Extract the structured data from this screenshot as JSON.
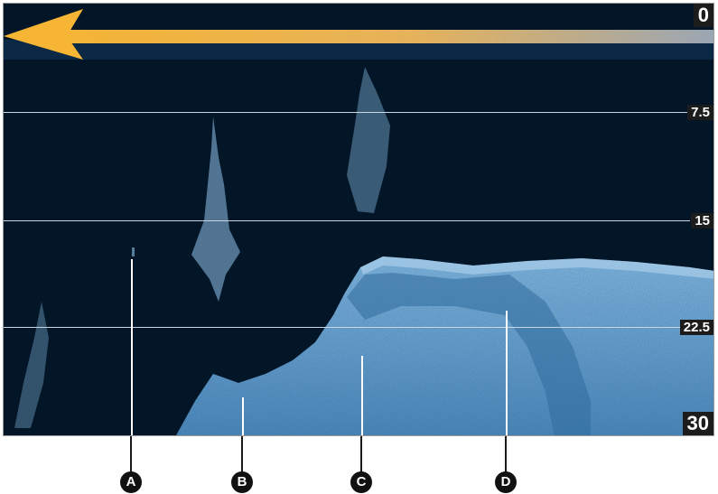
{
  "sonar": {
    "colors": {
      "water": "#031628",
      "bottom": "#5f9fd0",
      "arrow": "#f1b33b",
      "line": "#c9d6e2"
    },
    "depth_scale": [
      {
        "label": "0"
      },
      {
        "label": "7.5"
      },
      {
        "label": "15"
      },
      {
        "label": "22.5"
      },
      {
        "label": "30"
      }
    ]
  },
  "callouts": [
    {
      "label": "A"
    },
    {
      "label": "B"
    },
    {
      "label": "C"
    },
    {
      "label": "D"
    }
  ],
  "icons": {
    "direction": "arrow-left-icon"
  }
}
